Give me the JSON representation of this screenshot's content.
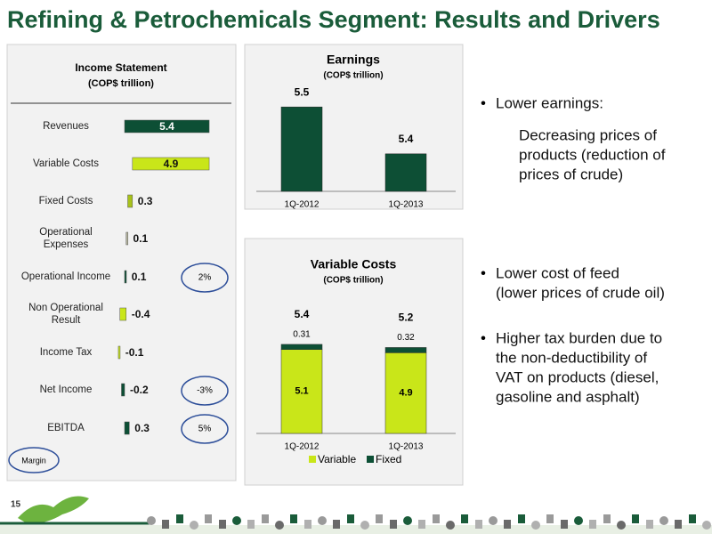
{
  "title": "Refining & Petrochemicals Segment: Results and Drivers",
  "page_number": "15",
  "chart_data": [
    {
      "type": "waterfall",
      "title": "Income Statement",
      "subtitle": "(COP$ trillion)",
      "categories": [
        "Revenues",
        "Variable Costs",
        "Fixed Costs",
        "Operational Expenses",
        "Operational Income",
        "Non Operational Result",
        "Income Tax",
        "Net Income",
        "EBITDA"
      ],
      "values": [
        5.4,
        4.9,
        0.3,
        0.1,
        0.1,
        -0.4,
        -0.1,
        -0.2,
        0.3
      ],
      "measure": [
        "absolute",
        "decrease",
        "decrease",
        "decrease",
        "total",
        "relative",
        "relative",
        "total",
        "total"
      ],
      "colors": [
        "#0d4f35",
        "#c9e619",
        "#a8c21a",
        "#b8b8a0",
        "#0d4f35",
        "#c9e619",
        "#c9e619",
        "#0d4f35",
        "#0d4f35"
      ],
      "margins": [
        null,
        null,
        null,
        null,
        2,
        null,
        null,
        -3,
        5
      ],
      "margin_labels": [
        null,
        null,
        null,
        null,
        "2%",
        null,
        null,
        "-3%",
        "5%"
      ],
      "margin_title": "Margin"
    },
    {
      "type": "bar",
      "title": "Earnings",
      "subtitle": "(COP$ trillion)",
      "categories": [
        "1Q-2012",
        "1Q-2013"
      ],
      "values": [
        5.5,
        5.4
      ],
      "color": "#0d4f35",
      "ylim": [
        5.32,
        5.58
      ]
    },
    {
      "type": "stacked_bar",
      "title": "Variable Costs",
      "subtitle": "(COP$ trillion)",
      "categories": [
        "1Q-2012",
        "1Q-2013"
      ],
      "series": [
        {
          "name": "Variable",
          "color": "#c9e619",
          "values": [
            5.1,
            4.9
          ]
        },
        {
          "name": "Fixed",
          "color": "#0d4f35",
          "values": [
            0.31,
            0.32
          ]
        }
      ],
      "totals": [
        5.4,
        5.2
      ],
      "ylim": [
        0,
        6
      ]
    }
  ],
  "bullets": [
    {
      "lines": [
        "Lower earnings:"
      ],
      "detail": [
        "Decreasing prices of",
        "products (reduction of",
        "prices of crude)"
      ]
    },
    {
      "lines": [
        "Lower cost of feed",
        "(lower prices of crude oil)"
      ]
    },
    {
      "lines": [
        "Higher tax burden due to",
        "the non-deductibility of",
        "VAT on products (diesel,",
        "gasoline and asphalt)"
      ]
    }
  ]
}
